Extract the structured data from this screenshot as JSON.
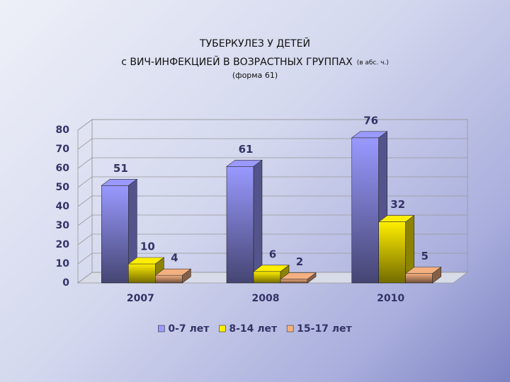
{
  "chart_data": {
    "type": "bar3d",
    "title": [
      "ТУБЕРКУЛЕЗ У ДЕТЕЙ",
      "с ВИЧ-ИНФЕКЦИЕЙ В ВОЗРАСТНЫХ ГРУППАХ"
    ],
    "title_note": "(в абс. ч.)",
    "subtitle": "(форма 61)",
    "categories": [
      "2007",
      "2008",
      "2010"
    ],
    "series": [
      {
        "name": "0-7 лет",
        "color": "#9999ff",
        "values": [
          51,
          61,
          76
        ]
      },
      {
        "name": "8-14 лет",
        "color": "#ffee00",
        "values": [
          10,
          6,
          32
        ]
      },
      {
        "name": "15-17 лет",
        "color": "#f5b080",
        "values": [
          4,
          2,
          5
        ]
      }
    ],
    "ylim": [
      0,
      80
    ],
    "yticks": [
      0,
      10,
      20,
      30,
      40,
      50,
      60,
      70,
      80
    ],
    "grid": true,
    "legend": "bottom"
  }
}
